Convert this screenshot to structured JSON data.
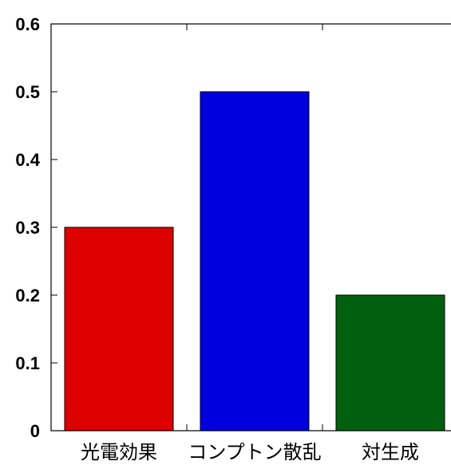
{
  "chart_data": {
    "type": "bar",
    "categories": [
      "光電効果",
      "コンプトン散乱",
      "対生成"
    ],
    "values": [
      0.3,
      0.5,
      0.2
    ],
    "colors": [
      "#dd0000",
      "#0000dd",
      "#006010"
    ],
    "ylim": [
      0,
      0.6
    ],
    "yticks": [
      0,
      0.1,
      0.2,
      0.3,
      0.4,
      0.5,
      0.6
    ],
    "ytick_labels": [
      "0",
      "0.1",
      "0.2",
      "0.3",
      "0.4",
      "0.5",
      "0.6"
    ],
    "title": "",
    "xlabel": "",
    "ylabel": "",
    "grid": false
  }
}
